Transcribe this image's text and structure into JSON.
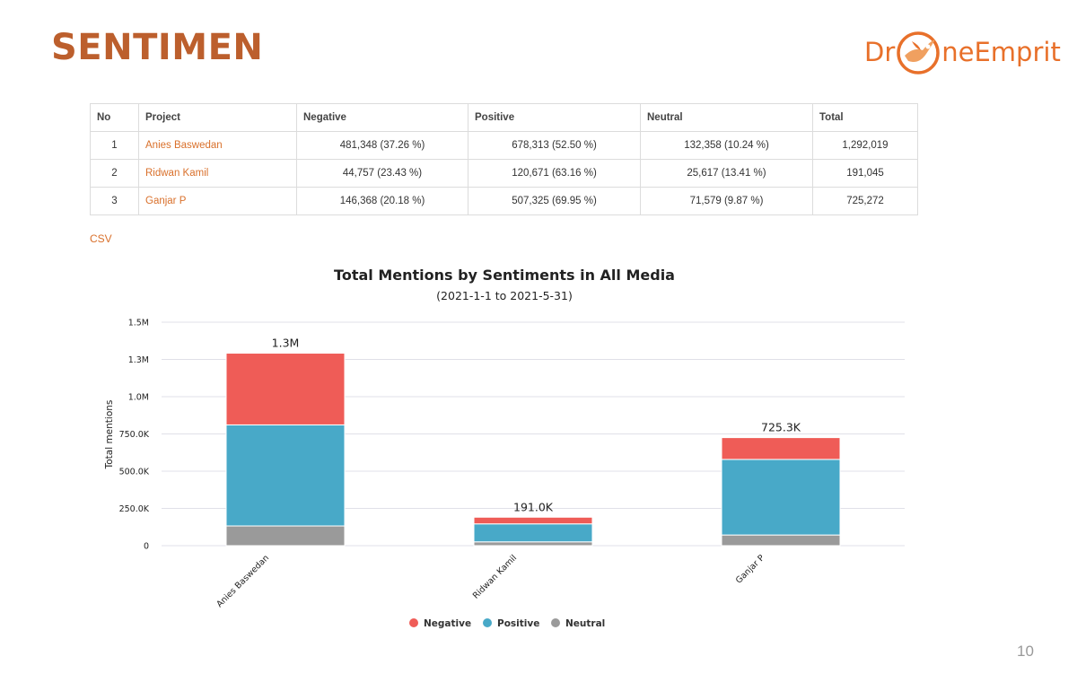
{
  "slide": {
    "title": "SENTIMEN",
    "page_number": "10"
  },
  "logo": {
    "part1": "Dr",
    "part2": "neEmprit",
    "color_dark": "#e8702a",
    "color_light": "#f0a060"
  },
  "colors": {
    "title": "#bc5f2d",
    "link": "#d9702b",
    "negative": "#ef5c57",
    "positive": "#48a9c8",
    "neutral": "#9a9a9a",
    "grid": "#e0e0e8"
  },
  "table": {
    "headers": [
      "No",
      "Project",
      "Negative",
      "Positive",
      "Neutral",
      "Total"
    ],
    "rows": [
      {
        "no": "1",
        "project": "Anies Baswedan",
        "negative": "481,348 (37.26 %)",
        "positive": "678,313 (52.50 %)",
        "neutral": "132,358 (10.24 %)",
        "total": "1,292,019"
      },
      {
        "no": "2",
        "project": "Ridwan Kamil",
        "negative": "44,757 (23.43 %)",
        "positive": "120,671 (63.16 %)",
        "neutral": "25,617 (13.41 %)",
        "total": "191,045"
      },
      {
        "no": "3",
        "project": "Ganjar P",
        "negative": "146,368 (20.18 %)",
        "positive": "507,325 (69.95 %)",
        "neutral": "71,579 (9.87 %)",
        "total": "725,272"
      }
    ],
    "csv_label": "CSV"
  },
  "chart_data": {
    "type": "bar",
    "stacked": true,
    "title": "Total Mentions by Sentiments in All Media",
    "subtitle": "(2021-1-1 to 2021-5-31)",
    "xlabel": "",
    "ylabel": "Total mentions",
    "ylim": [
      0,
      1500000
    ],
    "yticks": [
      {
        "value": 0,
        "label": "0"
      },
      {
        "value": 250000,
        "label": "250.0K"
      },
      {
        "value": 500000,
        "label": "500.0K"
      },
      {
        "value": 750000,
        "label": "750.0K"
      },
      {
        "value": 1000000,
        "label": "1.0M"
      },
      {
        "value": 1250000,
        "label": "1.3M"
      },
      {
        "value": 1500000,
        "label": "1.5M"
      }
    ],
    "categories": [
      "Anies Baswedan",
      "Ridwan Kamil",
      "Ganjar P"
    ],
    "series": [
      {
        "name": "Neutral",
        "color_key": "neutral",
        "values": [
          132358,
          25617,
          71579
        ]
      },
      {
        "name": "Positive",
        "color_key": "positive",
        "values": [
          678313,
          120671,
          507325
        ]
      },
      {
        "name": "Negative",
        "color_key": "negative",
        "values": [
          481348,
          44757,
          146368
        ]
      }
    ],
    "total_labels": [
      "1.3M",
      "191.0K",
      "725.3K"
    ],
    "legend": [
      "Negative",
      "Positive",
      "Neutral"
    ],
    "legend_position": "bottom-center"
  }
}
